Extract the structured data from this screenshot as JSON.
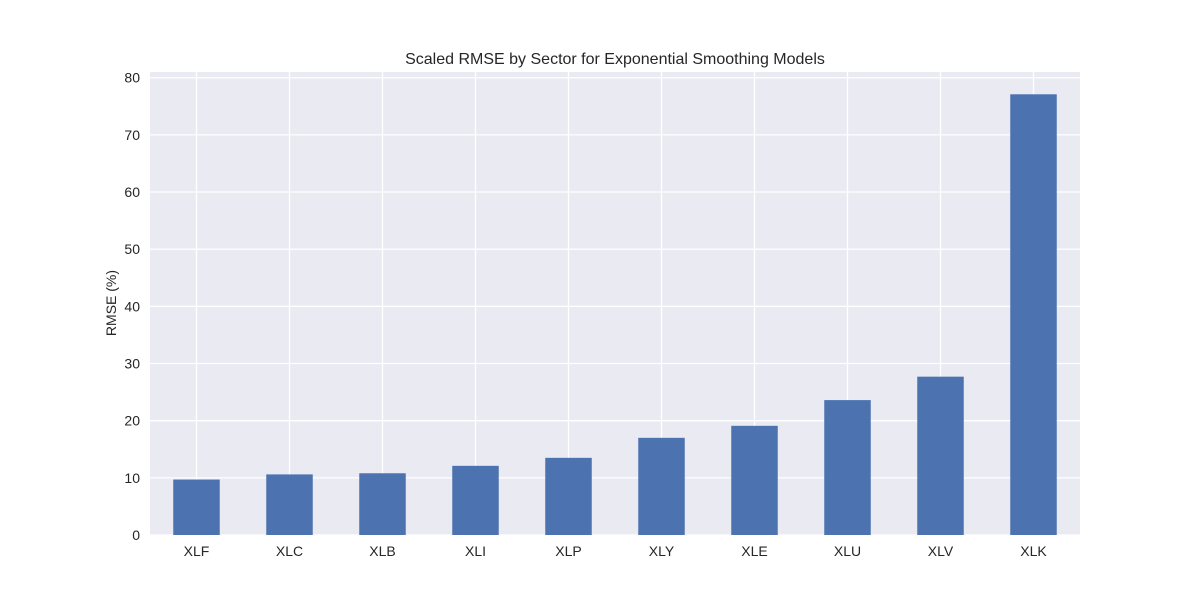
{
  "chart_data": {
    "type": "bar",
    "title": "Scaled RMSE by Sector for Exponential Smoothing Models",
    "xlabel": "",
    "ylabel": "RMSE (%)",
    "categories": [
      "XLF",
      "XLC",
      "XLB",
      "XLI",
      "XLP",
      "XLY",
      "XLE",
      "XLU",
      "XLV",
      "XLK"
    ],
    "values": [
      9.7,
      10.6,
      10.8,
      12.1,
      13.5,
      17.0,
      19.1,
      23.6,
      27.7,
      77.1
    ],
    "ylim": [
      0,
      81
    ],
    "yticks": [
      0,
      10,
      20,
      30,
      40,
      50,
      60,
      70,
      80
    ],
    "grid": true,
    "legend": "none",
    "colors": {
      "bar": "#4c72b0",
      "plot_background": "#eaeaf2",
      "grid": "#ffffff"
    }
  }
}
